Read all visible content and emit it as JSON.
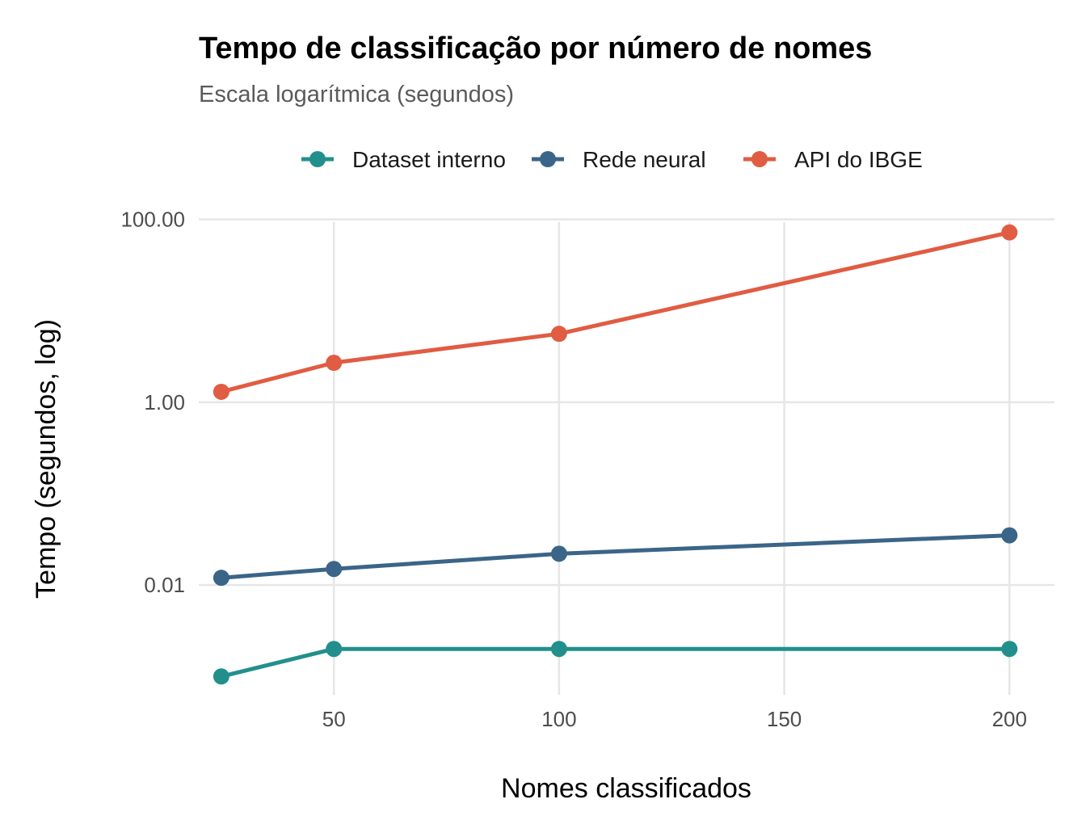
{
  "chart_data": {
    "type": "line",
    "title": "Tempo de classificação por número de nomes",
    "subtitle": "Escala logarítmica (segundos)",
    "xlabel": "Nomes classificados",
    "ylabel": "Tempo (segundos, log)",
    "yscale": "log10",
    "xlim": [
      20,
      210
    ],
    "ylim": [
      0.00063,
      140
    ],
    "x_ticks": [
      50,
      100,
      150,
      200
    ],
    "x_tick_labels": [
      "50",
      "100",
      "150",
      "200"
    ],
    "y_ticks": [
      0.01,
      1,
      100
    ],
    "y_tick_labels": [
      "0.01",
      "1.00",
      "100.00"
    ],
    "grid": true,
    "legend_position": "top",
    "x": [
      25,
      50,
      100,
      200
    ],
    "series": [
      {
        "name": "Dataset interno",
        "color": "#21908C",
        "values": [
          0.001,
          0.002,
          0.002,
          0.002
        ]
      },
      {
        "name": "Rede neural",
        "color": "#3B6588",
        "values": [
          0.012,
          0.015,
          0.022,
          0.035
        ]
      },
      {
        "name": "API do IBGE",
        "color": "#E05C42",
        "values": [
          1.3,
          2.7,
          5.6,
          72
        ]
      }
    ]
  }
}
